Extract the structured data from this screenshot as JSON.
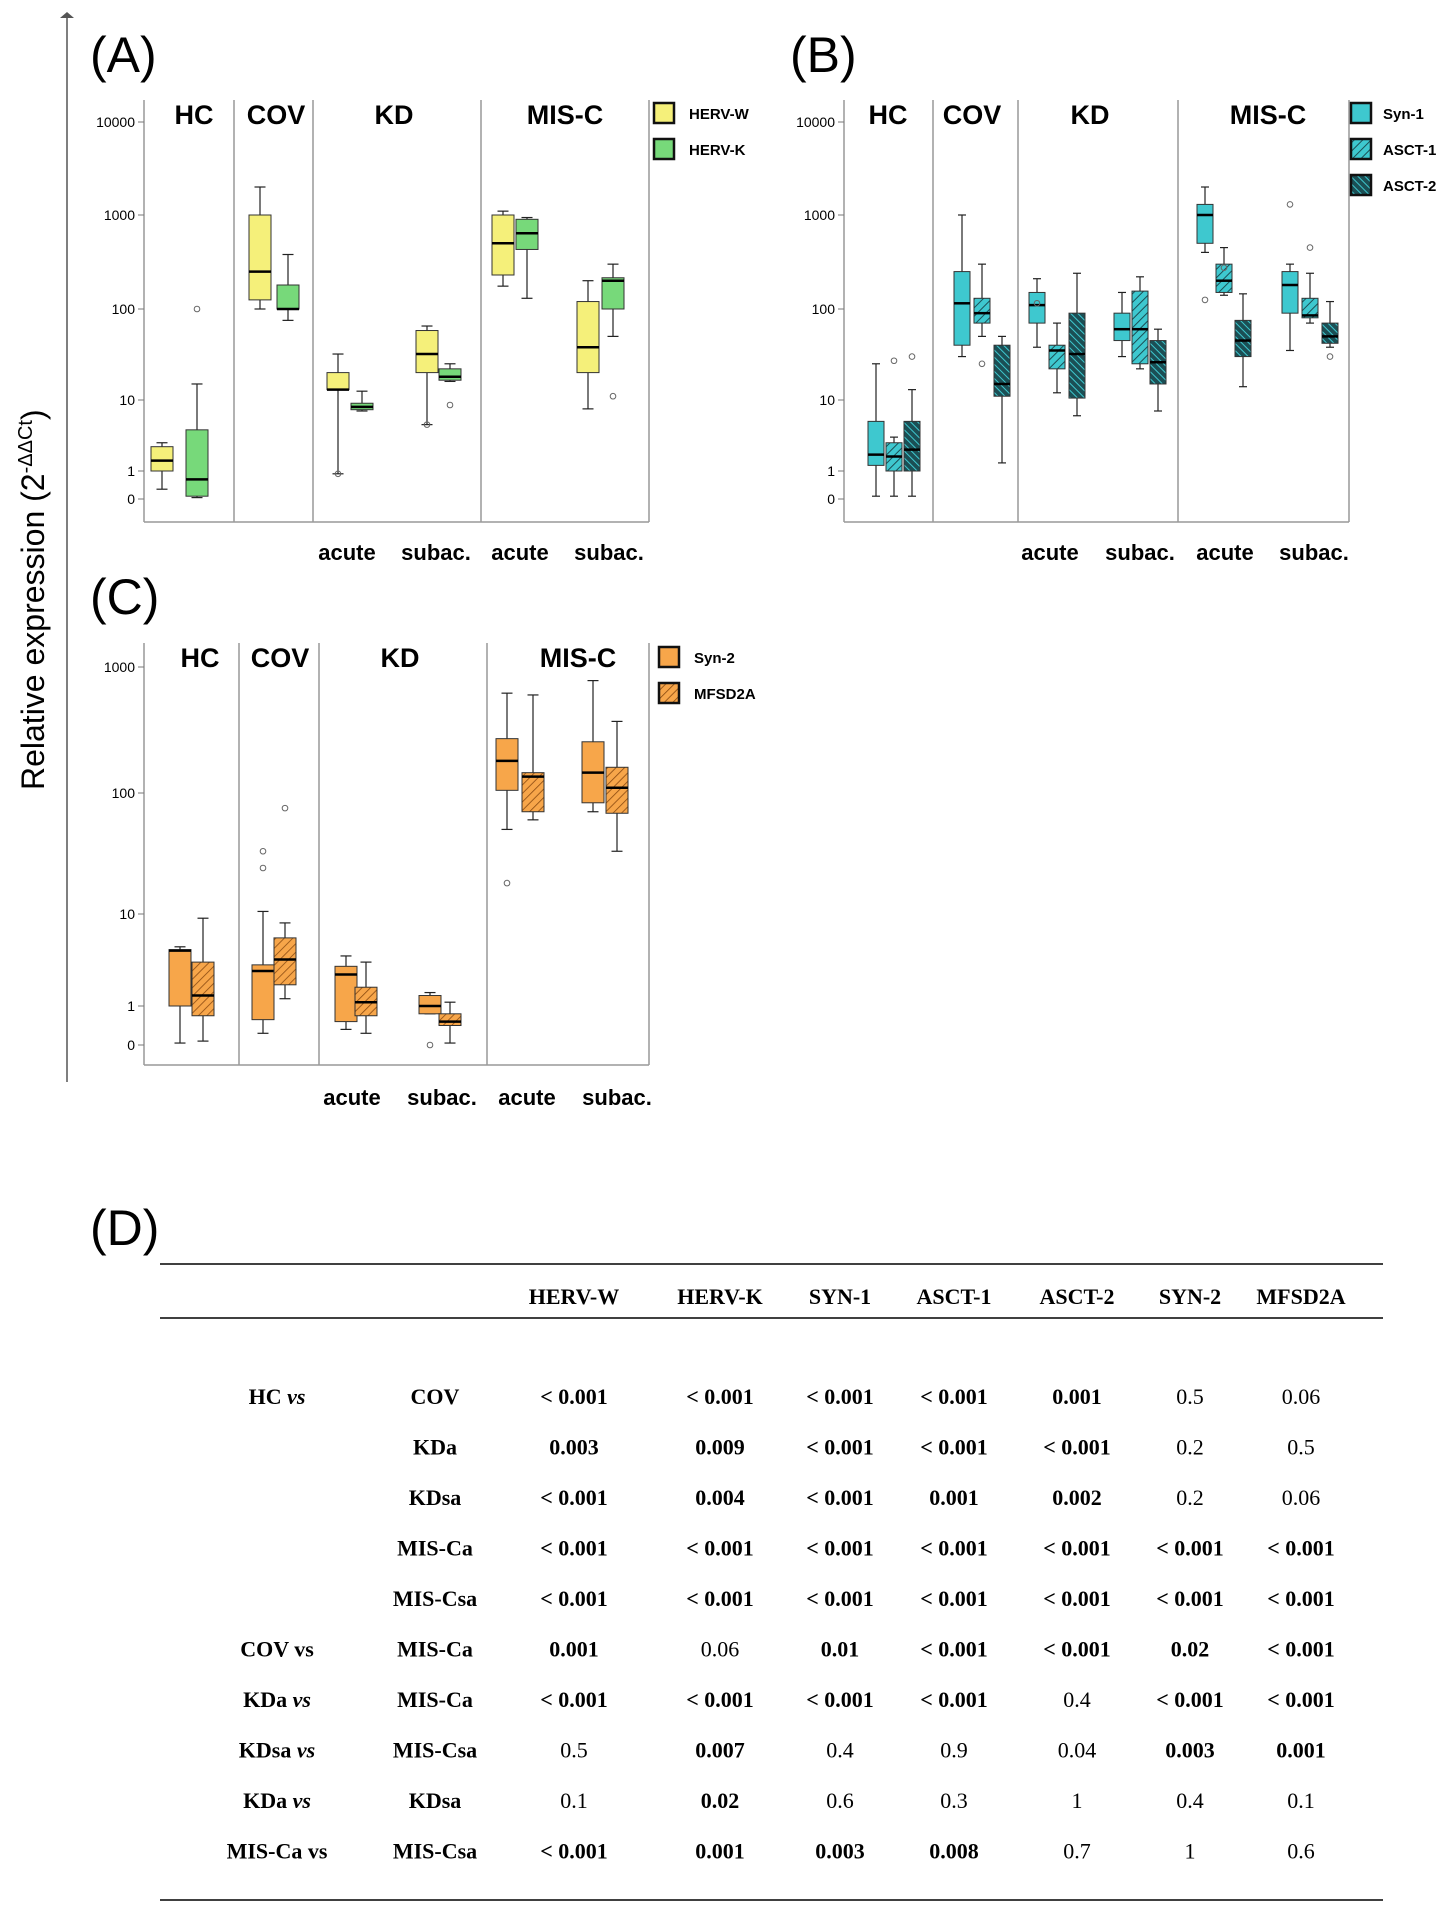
{
  "y_axis_label": "Relative expression (2",
  "y_axis_label_sup": "-ΔΔCt",
  "y_axis_label_close": ")",
  "chart_data": [
    {
      "type": "boxplot",
      "panel": "(A)",
      "groups": [
        "HC",
        "COV",
        "KD",
        "MIS-C"
      ],
      "subgroups": [
        "acute",
        "subac.",
        "acute",
        "subac."
      ],
      "yscale": "log",
      "yticks": [
        "10000",
        "1000",
        "100",
        "10",
        "1",
        "0"
      ],
      "legend": [
        {
          "name": "HERV-W",
          "color": "#f5f07a",
          "pattern": "solid"
        },
        {
          "name": "HERV-K",
          "color": "#77d97a",
          "pattern": "solid"
        }
      ],
      "categories": [
        "HC",
        "COV",
        "KD acute",
        "KD subac.",
        "MIS-C acute",
        "MIS-C subac."
      ],
      "series": [
        {
          "name": "HERV-W",
          "boxes": [
            {
              "min": 0.35,
              "q1": 1.0,
              "median": 1.4,
              "q3": 2.2,
              "max": 2.5
            },
            {
              "min": 100,
              "q1": 125,
              "median": 250,
              "q3": 1000,
              "max": 2000
            },
            {
              "min": 0.9,
              "q1": 13,
              "median": 13,
              "q3": 20,
              "max": 32,
              "outliers": [
                0.9
              ]
            },
            {
              "min": 4.5,
              "q1": 20,
              "median": 32,
              "q3": 58,
              "max": 65,
              "outliers": [
                4.5
              ]
            },
            {
              "min": 175,
              "q1": 230,
              "median": 500,
              "q3": 1000,
              "max": 1100
            },
            {
              "min": 7.5,
              "q1": 20,
              "median": 38,
              "q3": 120,
              "max": 200
            }
          ]
        },
        {
          "name": "HERV-K",
          "boxes": [
            {
              "min": 0.05,
              "q1": 0.1,
              "median": 0.7,
              "q3": 3.8,
              "max": 15,
              "outliers": [
                100
              ]
            },
            {
              "min": 75,
              "q1": 100,
              "median": 100,
              "q3": 180,
              "max": 380
            },
            {
              "min": 7,
              "q1": 7.3,
              "median": 8,
              "q3": 9,
              "max": 12.5
            },
            {
              "min": 16,
              "q1": 16.5,
              "median": 18,
              "q3": 22,
              "max": 25,
              "outliers": [
                8.5
              ]
            },
            {
              "min": 130,
              "q1": 430,
              "median": 640,
              "q3": 900,
              "max": 940
            },
            {
              "min": 50,
              "q1": 100,
              "median": 200,
              "q3": 215,
              "max": 300,
              "outliers": [
                11
              ]
            }
          ]
        }
      ]
    },
    {
      "type": "boxplot",
      "panel": "(B)",
      "groups": [
        "HC",
        "COV",
        "KD",
        "MIS-C"
      ],
      "subgroups": [
        "acute",
        "subac.",
        "acute",
        "subac."
      ],
      "yscale": "log",
      "yticks": [
        "10000",
        "1000",
        "100",
        "10",
        "1",
        "0"
      ],
      "legend": [
        {
          "name": "Syn-1",
          "color": "#3ec8cf",
          "pattern": "solid"
        },
        {
          "name": "ASCT-1",
          "color": "#3ec8cf",
          "pattern": "hatch"
        },
        {
          "name": "ASCT-2",
          "color": "#3ec8cf",
          "pattern": "dense"
        }
      ],
      "categories": [
        "HC",
        "COV",
        "KD acute",
        "KD subac.",
        "MIS-C acute",
        "MIS-C subac."
      ],
      "series": [
        {
          "name": "Syn-1",
          "boxes": [
            {
              "min": 0.1,
              "q1": 1.2,
              "median": 1.7,
              "q3": 5,
              "max": 25
            },
            {
              "min": 30,
              "q1": 40,
              "median": 115,
              "q3": 250,
              "max": 1000
            },
            {
              "min": 38,
              "q1": 70,
              "median": 110,
              "q3": 150,
              "max": 210,
              "outliers": [
                115
              ]
            },
            {
              "min": 30,
              "q1": 45,
              "median": 60,
              "q3": 90,
              "max": 150
            },
            {
              "min": 400,
              "q1": 500,
              "median": 1000,
              "q3": 1300,
              "max": 2000,
              "outliers": [
                125
              ]
            },
            {
              "min": 35,
              "q1": 90,
              "median": 180,
              "q3": 250,
              "max": 300,
              "outliers": [
                1300
              ]
            }
          ]
        },
        {
          "name": "ASCT-1",
          "boxes": [
            {
              "min": 0.1,
              "q1": 1.0,
              "median": 1.6,
              "q3": 2.5,
              "max": 3,
              "outliers": [
                27
              ]
            },
            {
              "min": 50,
              "q1": 70,
              "median": 90,
              "q3": 130,
              "max": 300,
              "outliers": [
                25
              ]
            },
            {
              "min": 12,
              "q1": 22,
              "median": 35,
              "q3": 40,
              "max": 70
            },
            {
              "min": 22,
              "q1": 25,
              "median": 60,
              "q3": 155,
              "max": 220
            },
            {
              "min": 140,
              "q1": 150,
              "median": 200,
              "q3": 300,
              "max": 450,
              "outliers": [
                275
              ]
            },
            {
              "min": 70,
              "q1": 80,
              "median": 85,
              "q3": 130,
              "max": 240,
              "outliers": [
                450
              ]
            }
          ]
        },
        {
          "name": "ASCT-2",
          "boxes": [
            {
              "min": 0.1,
              "q1": 1.0,
              "median": 2.0,
              "q3": 5,
              "max": 13,
              "outliers": [
                30
              ]
            },
            {
              "min": 1.3,
              "q1": 11,
              "median": 15,
              "q3": 40,
              "max": 50
            },
            {
              "min": 6,
              "q1": 10.5,
              "median": 32,
              "q3": 90,
              "max": 240
            },
            {
              "min": 7,
              "q1": 15,
              "median": 26,
              "q3": 45,
              "max": 60
            },
            {
              "min": 14,
              "q1": 30,
              "median": 45,
              "q3": 75,
              "max": 145
            },
            {
              "min": 38,
              "q1": 42,
              "median": 50,
              "q3": 70,
              "max": 120,
              "outliers": [
                30
              ]
            }
          ]
        }
      ]
    },
    {
      "type": "boxplot",
      "panel": "(C)",
      "groups": [
        "HC",
        "COV",
        "KD",
        "MIS-C"
      ],
      "subgroups": [
        "acute",
        "subac.",
        "acute",
        "subac."
      ],
      "yscale": "log",
      "yticks": [
        "1000",
        "100",
        "10",
        "1",
        "0"
      ],
      "legend": [
        {
          "name": "Syn-2",
          "color": "#f7a64a",
          "pattern": "solid"
        },
        {
          "name": "MFSD2A",
          "color": "#f7a64a",
          "pattern": "hatch"
        }
      ],
      "categories": [
        "HC",
        "COV",
        "KD acute",
        "KD subac."
      ],
      "series_note": "MIS-C groups included below",
      "categories_full": [
        "HC",
        "COV",
        "KD acute",
        "KD subac.",
        "MIS-C acute",
        "MIS-C subac."
      ],
      "series": [
        {
          "name": "Syn-2",
          "boxes": [
            {
              "min": 0.05,
              "q1": 1.0,
              "median": 4.0,
              "q3": 4.1,
              "max": 4.4
            },
            {
              "min": 0.3,
              "q1": 0.65,
              "median": 2.4,
              "q3": 2.8,
              "max": 10.5,
              "outliers": [
                24,
                33
              ]
            },
            {
              "min": 0.4,
              "q1": 0.6,
              "median": 2.2,
              "q3": 2.7,
              "max": 3.5
            },
            {
              "min": 0.8,
              "q1": 0.8,
              "median": 1.0,
              "q3": 1.3,
              "max": 1.4,
              "outliers": [
                0.0
              ]
            },
            {
              "min": 50,
              "q1": 105,
              "median": 180,
              "q3": 270,
              "max": 620,
              "outliers": [
                18
              ]
            },
            {
              "min": 70,
              "q1": 83,
              "median": 145,
              "q3": 255,
              "max": 780
            }
          ]
        },
        {
          "name": "MFSD2A",
          "boxes": [
            {
              "min": 0.1,
              "q1": 0.75,
              "median": 1.3,
              "q3": 3.0,
              "max": 9
            },
            {
              "min": 1.2,
              "q1": 1.7,
              "median": 3.2,
              "q3": 5.5,
              "max": 8,
              "outliers": [
                75
              ]
            },
            {
              "min": 0.3,
              "q1": 0.75,
              "median": 1.1,
              "q3": 1.6,
              "max": 3.0
            },
            {
              "min": 0.05,
              "q1": 0.5,
              "median": 0.6,
              "q3": 0.8,
              "max": 1.1
            },
            {
              "min": 60,
              "q1": 70,
              "median": 135,
              "q3": 145,
              "max": 600
            },
            {
              "min": 33,
              "q1": 68,
              "median": 110,
              "q3": 160,
              "max": 370
            }
          ]
        }
      ]
    },
    {
      "type": "table",
      "panel": "(D)",
      "columns": [
        "HERV-W",
        "HERV-K",
        "SYN-1",
        "ASCT-1",
        "ASCT-2",
        "SYN-2",
        "MFSD2A"
      ],
      "rows": [
        {
          "group": "HC",
          "group_suffix": "vs",
          "group_suffix_italic": true,
          "compare": "COV",
          "values": [
            "< 0.001",
            "< 0.001",
            "< 0.001",
            "< 0.001",
            "0.001",
            "0.5",
            "0.06"
          ],
          "bold": [
            true,
            true,
            true,
            true,
            true,
            false,
            false
          ]
        },
        {
          "group": "",
          "group_suffix": "",
          "group_suffix_italic": false,
          "compare": "KDa",
          "values": [
            "0.003",
            "0.009",
            "< 0.001",
            "< 0.001",
            "< 0.001",
            "0.2",
            "0.5"
          ],
          "bold": [
            true,
            true,
            true,
            true,
            true,
            false,
            false
          ]
        },
        {
          "group": "",
          "group_suffix": "",
          "group_suffix_italic": false,
          "compare": "KDsa",
          "values": [
            "< 0.001",
            "0.004",
            "< 0.001",
            "0.001",
            "0.002",
            "0.2",
            "0.06"
          ],
          "bold": [
            true,
            true,
            true,
            true,
            true,
            false,
            false
          ]
        },
        {
          "group": "",
          "group_suffix": "",
          "group_suffix_italic": false,
          "compare": "MIS-Ca",
          "values": [
            "< 0.001",
            "< 0.001",
            "< 0.001",
            "< 0.001",
            "< 0.001",
            "< 0.001",
            "< 0.001"
          ],
          "bold": [
            true,
            true,
            true,
            true,
            true,
            true,
            true
          ]
        },
        {
          "group": "",
          "group_suffix": "",
          "group_suffix_italic": false,
          "compare": "MIS-Csa",
          "values": [
            "< 0.001",
            "< 0.001",
            "< 0.001",
            "< 0.001",
            "< 0.001",
            "< 0.001",
            "< 0.001"
          ],
          "bold": [
            true,
            true,
            true,
            true,
            true,
            true,
            true
          ]
        },
        {
          "group": "COV",
          "group_suffix": "vs",
          "group_suffix_italic": false,
          "compare": "MIS-Ca",
          "values": [
            "0.001",
            "0.06",
            "0.01",
            "< 0.001",
            "< 0.001",
            "0.02",
            "< 0.001"
          ],
          "bold": [
            true,
            false,
            true,
            true,
            true,
            true,
            true
          ]
        },
        {
          "group": "KDa",
          "group_suffix": "vs",
          "group_suffix_italic": true,
          "compare": "MIS-Ca",
          "values": [
            "< 0.001",
            "< 0.001",
            "< 0.001",
            "< 0.001",
            "0.4",
            "< 0.001",
            "< 0.001"
          ],
          "bold": [
            true,
            true,
            true,
            true,
            false,
            true,
            true
          ]
        },
        {
          "group": "KDsa",
          "group_suffix": "vs",
          "group_suffix_italic": true,
          "compare": "MIS-Csa",
          "values": [
            "0.5",
            "0.007",
            "0.4",
            "0.9",
            "0.04",
            "0.003",
            "0.001"
          ],
          "bold": [
            false,
            true,
            false,
            false,
            false,
            true,
            true
          ]
        },
        {
          "group": "KDa",
          "group_suffix": "vs",
          "group_suffix_italic": true,
          "compare": "KDsa",
          "values": [
            "0.1",
            "0.02",
            "0.6",
            "0.3",
            "1",
            "0.4",
            "0.1"
          ],
          "bold": [
            false,
            true,
            false,
            false,
            false,
            false,
            false
          ]
        },
        {
          "group": "MIS-Ca",
          "group_suffix": "vs",
          "group_suffix_italic": false,
          "compare": "MIS-Csa",
          "values": [
            "< 0.001",
            "0.001",
            "0.003",
            "0.008",
            "0.7",
            "1",
            "0.6"
          ],
          "bold": [
            true,
            true,
            true,
            true,
            false,
            false,
            false
          ]
        }
      ]
    }
  ]
}
